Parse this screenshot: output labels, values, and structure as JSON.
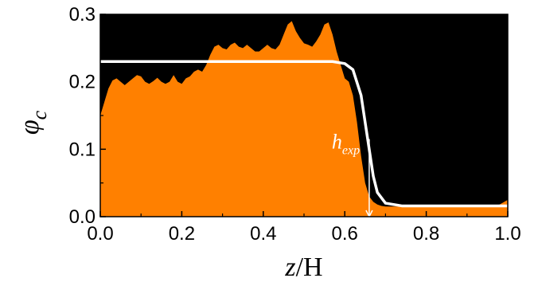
{
  "chart_data": {
    "type": "area",
    "xlabel": {
      "var": "z",
      "rest": "/H"
    },
    "ylabel": {
      "var": "φ",
      "sub": "c"
    },
    "xlim": [
      0.0,
      1.0
    ],
    "ylim": [
      0.0,
      0.3
    ],
    "x_ticks": [
      "0.0",
      "0.2",
      "0.4",
      "0.6",
      "0.8",
      "1.0"
    ],
    "y_ticks": [
      "0.0",
      "0.1",
      "0.2",
      "0.3"
    ],
    "grid": false,
    "background_color": "#000000",
    "series": [
      {
        "color": "#ff8000",
        "style": "filled-area",
        "x": [
          0.0,
          0.01,
          0.02,
          0.03,
          0.04,
          0.05,
          0.06,
          0.07,
          0.08,
          0.09,
          0.1,
          0.11,
          0.12,
          0.13,
          0.14,
          0.15,
          0.16,
          0.17,
          0.18,
          0.19,
          0.2,
          0.21,
          0.22,
          0.23,
          0.24,
          0.25,
          0.26,
          0.27,
          0.28,
          0.29,
          0.3,
          0.31,
          0.32,
          0.33,
          0.34,
          0.35,
          0.36,
          0.37,
          0.38,
          0.39,
          0.4,
          0.41,
          0.42,
          0.43,
          0.44,
          0.45,
          0.46,
          0.47,
          0.48,
          0.49,
          0.5,
          0.51,
          0.52,
          0.53,
          0.54,
          0.55,
          0.56,
          0.57,
          0.58,
          0.59,
          0.6,
          0.61,
          0.62,
          0.63,
          0.64,
          0.65,
          0.66,
          0.67,
          0.68,
          0.69,
          0.7,
          0.72,
          0.74,
          0.76,
          0.8,
          0.85,
          0.9,
          0.95,
          0.98,
          1.0
        ],
        "y": [
          0.15,
          0.17,
          0.19,
          0.202,
          0.205,
          0.2,
          0.195,
          0.2,
          0.205,
          0.21,
          0.208,
          0.2,
          0.197,
          0.201,
          0.206,
          0.2,
          0.197,
          0.2,
          0.21,
          0.2,
          0.197,
          0.205,
          0.208,
          0.215,
          0.218,
          0.215,
          0.225,
          0.24,
          0.252,
          0.255,
          0.25,
          0.248,
          0.255,
          0.258,
          0.252,
          0.25,
          0.255,
          0.25,
          0.245,
          0.245,
          0.25,
          0.255,
          0.25,
          0.248,
          0.255,
          0.27,
          0.285,
          0.29,
          0.275,
          0.265,
          0.257,
          0.255,
          0.252,
          0.26,
          0.27,
          0.285,
          0.288,
          0.27,
          0.245,
          0.225,
          0.205,
          0.2,
          0.18,
          0.14,
          0.09,
          0.05,
          0.03,
          0.022,
          0.018,
          0.016,
          0.015,
          0.015,
          0.015,
          0.015,
          0.015,
          0.015,
          0.015,
          0.015,
          0.018,
          0.025
        ]
      },
      {
        "color": "#ffffff",
        "style": "line",
        "x": [
          0.0,
          0.57,
          0.6,
          0.62,
          0.64,
          0.65,
          0.66,
          0.67,
          0.68,
          0.7,
          0.74,
          0.8,
          1.0
        ],
        "y": [
          0.23,
          0.23,
          0.227,
          0.218,
          0.18,
          0.14,
          0.1,
          0.06,
          0.036,
          0.02,
          0.016,
          0.016,
          0.016
        ]
      }
    ],
    "annotations": [
      {
        "text": "h",
        "sub": "exp",
        "arrow_x": 0.66,
        "arrow_from_y": 0.115,
        "arrow_to_y": 0.0
      }
    ]
  }
}
